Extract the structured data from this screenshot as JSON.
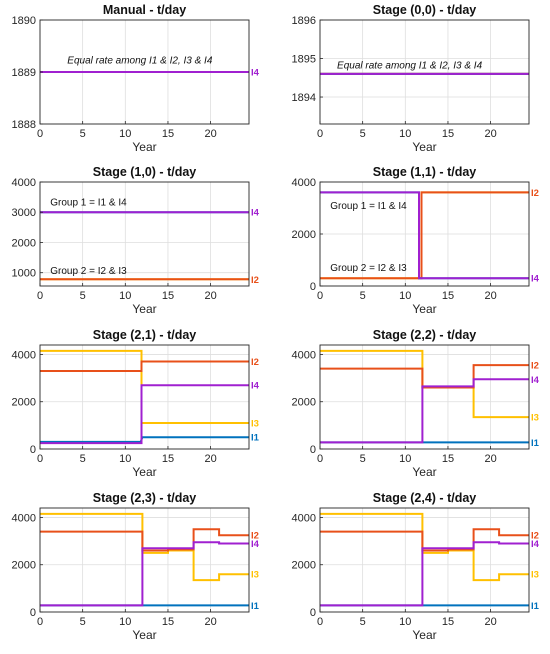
{
  "colors": {
    "I1": "#0072BD",
    "I2": "#E8501A",
    "I3": "#FFC000",
    "I4": "#A020D0"
  },
  "chart_data": [
    {
      "type": "line",
      "title": "Manual - t/day",
      "xlabel": "Year",
      "xlim": [
        0,
        24.5
      ],
      "ylim": [
        1888,
        1890
      ],
      "xticks": [
        0,
        5,
        10,
        15,
        20
      ],
      "yticks": [
        1888,
        1889,
        1890
      ],
      "grid": true,
      "series": [
        {
          "name": "I1",
          "x": [
            0,
            24.5
          ],
          "y": [
            1889,
            1889
          ]
        },
        {
          "name": "I2",
          "x": [
            0,
            24.5
          ],
          "y": [
            1889,
            1889
          ]
        },
        {
          "name": "I3",
          "x": [
            0,
            24.5
          ],
          "y": [
            1889,
            1889
          ]
        },
        {
          "name": "I4",
          "x": [
            0,
            24.5
          ],
          "y": [
            1889,
            1889
          ]
        }
      ],
      "labels": [
        {
          "text": "I4",
          "color": "#A020D0",
          "y": 1889
        }
      ],
      "annotations": [
        {
          "text": "Equal rate among I1 & I2, I3 & I4",
          "x": 3.2,
          "y": 1889.22,
          "style": "italic"
        }
      ]
    },
    {
      "type": "line",
      "title": "Stage (0,0) - t/day",
      "xlabel": "Year",
      "xlim": [
        0,
        24.5
      ],
      "ylim": [
        1893.3,
        1896
      ],
      "xticks": [
        0,
        5,
        10,
        15,
        20
      ],
      "yticks": [
        1894,
        1895,
        1896
      ],
      "grid": true,
      "series": [
        {
          "name": "I1",
          "x": [
            0,
            24.5
          ],
          "y": [
            1894.6,
            1894.6
          ]
        },
        {
          "name": "I2",
          "x": [
            0,
            24.5
          ],
          "y": [
            1894.6,
            1894.6
          ]
        },
        {
          "name": "I3",
          "x": [
            0,
            24.5
          ],
          "y": [
            1894.6,
            1894.6
          ]
        },
        {
          "name": "I4",
          "x": [
            0,
            24.5
          ],
          "y": [
            1894.6,
            1894.6
          ]
        }
      ],
      "labels": [],
      "annotations": [
        {
          "text": "Equal rate among I1 & I2, I3 & I4",
          "x": 2.0,
          "y": 1894.82,
          "style": "italic"
        }
      ]
    },
    {
      "type": "line",
      "title": "Stage (1,0) - t/day",
      "xlabel": "Year",
      "xlim": [
        0,
        24.5
      ],
      "ylim": [
        560,
        4000
      ],
      "xticks": [
        0,
        5,
        10,
        15,
        20
      ],
      "yticks": [
        1000,
        2000,
        3000,
        4000
      ],
      "grid": true,
      "series": [
        {
          "name": "I1",
          "x": [
            0,
            24.5
          ],
          "y": [
            3000,
            3000
          ]
        },
        {
          "name": "I2",
          "x": [
            0,
            24.5
          ],
          "y": [
            780,
            780
          ]
        },
        {
          "name": "I3",
          "x": [
            0,
            24.5
          ],
          "y": [
            780,
            780
          ]
        },
        {
          "name": "I4",
          "x": [
            0,
            24.5
          ],
          "y": [
            3000,
            3000
          ]
        }
      ],
      "labels": [
        {
          "text": "I4",
          "color": "#A020D0",
          "y": 3000
        },
        {
          "text": "I2",
          "color": "#E8501A",
          "y": 780
        }
      ],
      "annotations": [
        {
          "text": "Group 1 = I1 & I4",
          "x": 1.2,
          "y": 3330,
          "style": "normal"
        },
        {
          "text": "Group 2 = I2 & I3",
          "x": 1.2,
          "y": 1060,
          "style": "normal"
        }
      ]
    },
    {
      "type": "line",
      "title": "Stage (1,1) - t/day",
      "xlabel": "Year",
      "xlim": [
        0,
        24.5
      ],
      "ylim": [
        0,
        4000
      ],
      "xticks": [
        0,
        5,
        10,
        15,
        20
      ],
      "yticks": [
        0,
        2000,
        4000
      ],
      "grid": true,
      "series": [
        {
          "name": "I1",
          "x": [
            0,
            11.6,
            11.6,
            24.5
          ],
          "y": [
            3600,
            3600,
            300,
            300
          ]
        },
        {
          "name": "I2",
          "x": [
            0,
            11.9,
            11.9,
            24.5
          ],
          "y": [
            300,
            300,
            3600,
            3600
          ]
        },
        {
          "name": "I3",
          "x": [
            0,
            11.9,
            11.9,
            24.5
          ],
          "y": [
            300,
            300,
            3600,
            3600
          ]
        },
        {
          "name": "I4",
          "x": [
            0,
            11.6,
            11.6,
            24.5
          ],
          "y": [
            3600,
            3600,
            300,
            300
          ]
        }
      ],
      "labels": [
        {
          "text": "I2",
          "color": "#E8501A",
          "y": 3600
        },
        {
          "text": "I4",
          "color": "#A020D0",
          "y": 300
        }
      ],
      "annotations": [
        {
          "text": "Group 1 = I1 & I4",
          "x": 1.2,
          "y": 3080,
          "style": "normal"
        },
        {
          "text": "Group 2 = I2 & I3",
          "x": 1.2,
          "y": 700,
          "style": "normal"
        }
      ]
    },
    {
      "type": "line",
      "title": "Stage (2,1) - t/day",
      "xlabel": "Year",
      "xlim": [
        0,
        24.5
      ],
      "ylim": [
        0,
        4400
      ],
      "xticks": [
        0,
        5,
        10,
        15,
        20
      ],
      "yticks": [
        0,
        2000,
        4000
      ],
      "grid": true,
      "series": [
        {
          "name": "I1",
          "x": [
            0,
            11.8,
            12.0,
            24.5
          ],
          "y": [
            300,
            300,
            500,
            500
          ]
        },
        {
          "name": "I2",
          "x": [
            0,
            11.9,
            11.9,
            24.5
          ],
          "y": [
            3300,
            3300,
            3700,
            3700
          ]
        },
        {
          "name": "I3",
          "x": [
            0,
            11.9,
            11.9,
            24.5
          ],
          "y": [
            4150,
            4150,
            1100,
            1100
          ]
        },
        {
          "name": "I4",
          "x": [
            0,
            11.9,
            11.9,
            24.5
          ],
          "y": [
            250,
            250,
            2700,
            2700
          ]
        }
      ],
      "labels": [
        {
          "text": "I2",
          "color": "#E8501A",
          "y": 3700
        },
        {
          "text": "I4",
          "color": "#A020D0",
          "y": 2700
        },
        {
          "text": "I3",
          "color": "#FFC000",
          "y": 1100
        },
        {
          "text": "I1",
          "color": "#0072BD",
          "y": 500
        }
      ],
      "annotations": []
    },
    {
      "type": "line",
      "title": "Stage (2,2) - t/day",
      "xlabel": "Year",
      "xlim": [
        0,
        24.5
      ],
      "ylim": [
        0,
        4400
      ],
      "xticks": [
        0,
        5,
        10,
        15,
        20
      ],
      "yticks": [
        0,
        2000,
        4000
      ],
      "grid": true,
      "series": [
        {
          "name": "I1",
          "x": [
            0,
            24.5
          ],
          "y": [
            280,
            280
          ]
        },
        {
          "name": "I2",
          "x": [
            0,
            12.0,
            12.0,
            18.0,
            18.0,
            24.5
          ],
          "y": [
            3400,
            3400,
            2600,
            2600,
            3550,
            3550
          ]
        },
        {
          "name": "I3",
          "x": [
            0,
            12.0,
            12.0,
            18.0,
            18.0,
            24.5
          ],
          "y": [
            4150,
            4150,
            2600,
            2600,
            1350,
            1350
          ]
        },
        {
          "name": "I4",
          "x": [
            0,
            12.0,
            12.0,
            18.0,
            18.0,
            24.5
          ],
          "y": [
            280,
            280,
            2650,
            2650,
            2950,
            2950
          ]
        }
      ],
      "labels": [
        {
          "text": "I2",
          "color": "#E8501A",
          "y": 3550
        },
        {
          "text": "I4",
          "color": "#A020D0",
          "y": 2950
        },
        {
          "text": "I3",
          "color": "#FFC000",
          "y": 1350
        },
        {
          "text": "I1",
          "color": "#0072BD",
          "y": 280
        }
      ],
      "annotations": []
    },
    {
      "type": "line",
      "title": "Stage (2,3) - t/day",
      "xlabel": "Year",
      "xlim": [
        0,
        24.5
      ],
      "ylim": [
        0,
        4400
      ],
      "xticks": [
        0,
        5,
        10,
        15,
        20
      ],
      "yticks": [
        0,
        2000,
        4000
      ],
      "grid": true,
      "series": [
        {
          "name": "I1",
          "x": [
            0,
            24.5
          ],
          "y": [
            280,
            280
          ]
        },
        {
          "name": "I2",
          "x": [
            0,
            12.0,
            12.0,
            15.0,
            15.0,
            18.0,
            18.0,
            21.0,
            21.0,
            24.5
          ],
          "y": [
            3400,
            3400,
            2600,
            2600,
            2650,
            2650,
            3500,
            3500,
            3250,
            3250
          ]
        },
        {
          "name": "I3",
          "x": [
            0,
            12.0,
            12.0,
            15.0,
            15.0,
            18.0,
            18.0,
            21.0,
            21.0,
            24.5
          ],
          "y": [
            4150,
            4150,
            2500,
            2500,
            2600,
            2600,
            1350,
            1350,
            1600,
            1600
          ]
        },
        {
          "name": "I4",
          "x": [
            0,
            12.0,
            12.0,
            15.0,
            15.0,
            18.0,
            18.0,
            21.0,
            21.0,
            24.5
          ],
          "y": [
            280,
            280,
            2700,
            2700,
            2700,
            2700,
            2950,
            2950,
            2900,
            2900
          ]
        }
      ],
      "labels": [
        {
          "text": "I2",
          "color": "#E8501A",
          "y": 3250
        },
        {
          "text": "I4",
          "color": "#A020D0",
          "y": 2900
        },
        {
          "text": "I3",
          "color": "#FFC000",
          "y": 1600
        },
        {
          "text": "I1",
          "color": "#0072BD",
          "y": 280
        }
      ],
      "annotations": []
    },
    {
      "type": "line",
      "title": "Stage (2,4) - t/day",
      "xlabel": "Year",
      "xlim": [
        0,
        24.5
      ],
      "ylim": [
        0,
        4400
      ],
      "xticks": [
        0,
        5,
        10,
        15,
        20
      ],
      "yticks": [
        0,
        2000,
        4000
      ],
      "grid": true,
      "series": [
        {
          "name": "I1",
          "x": [
            0,
            24.5
          ],
          "y": [
            280,
            280
          ]
        },
        {
          "name": "I2",
          "x": [
            0,
            12.0,
            12.0,
            15.0,
            15.0,
            18.0,
            18.0,
            21.0,
            21.0,
            24.5
          ],
          "y": [
            3400,
            3400,
            2600,
            2600,
            2650,
            2650,
            3500,
            3500,
            3250,
            3250
          ]
        },
        {
          "name": "I3",
          "x": [
            0,
            12.0,
            12.0,
            15.0,
            15.0,
            18.0,
            18.0,
            21.0,
            21.0,
            24.5
          ],
          "y": [
            4150,
            4150,
            2500,
            2500,
            2600,
            2600,
            1350,
            1350,
            1600,
            1600
          ]
        },
        {
          "name": "I4",
          "x": [
            0,
            12.0,
            12.0,
            15.0,
            15.0,
            18.0,
            18.0,
            21.0,
            21.0,
            24.5
          ],
          "y": [
            280,
            280,
            2700,
            2700,
            2700,
            2700,
            2950,
            2950,
            2900,
            2900
          ]
        }
      ],
      "labels": [
        {
          "text": "I2",
          "color": "#E8501A",
          "y": 3250
        },
        {
          "text": "I4",
          "color": "#A020D0",
          "y": 2900
        },
        {
          "text": "I3",
          "color": "#FFC000",
          "y": 1600
        },
        {
          "text": "I1",
          "color": "#0072BD",
          "y": 280
        }
      ],
      "annotations": []
    }
  ]
}
